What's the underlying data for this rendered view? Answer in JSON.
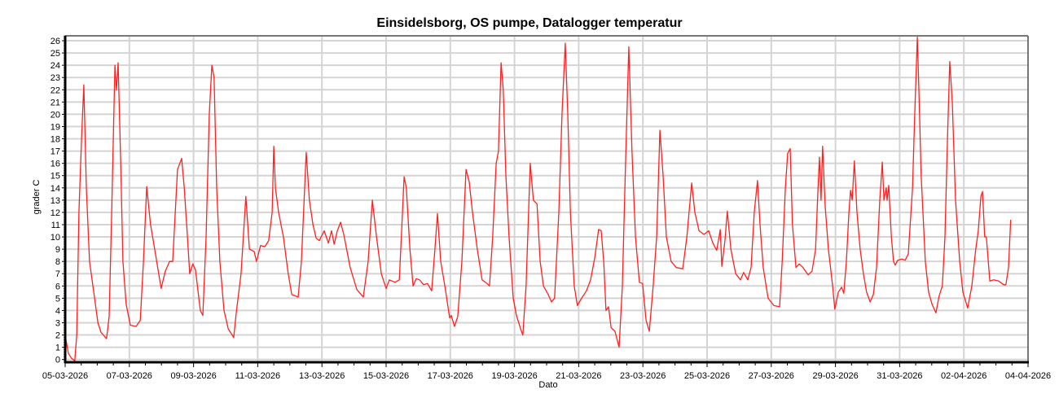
{
  "chart_data": {
    "type": "line",
    "title": "Einsidelsborg, OS pumpe, Datalogger temperatur",
    "xlabel": "Dato",
    "ylabel": "grader C",
    "x_unit": "days since 05-03-2026",
    "xlim": [
      0,
      30
    ],
    "ylim": [
      -0.22,
      26.4
    ],
    "grid": true,
    "yticks": [
      0,
      1,
      2,
      3,
      4,
      5,
      6,
      7,
      8,
      9,
      10,
      11,
      12,
      13,
      14,
      15,
      16,
      17,
      18,
      19,
      20,
      21,
      22,
      23,
      24,
      25,
      26
    ],
    "xticks": [
      {
        "day": 0,
        "label": "05-03-2026"
      },
      {
        "day": 2,
        "label": "07-03-2026"
      },
      {
        "day": 4,
        "label": "09-03-2026"
      },
      {
        "day": 6,
        "label": "11-03-2026"
      },
      {
        "day": 8,
        "label": "13-03-2026"
      },
      {
        "day": 10,
        "label": "15-03-2026"
      },
      {
        "day": 12,
        "label": "17-03-2026"
      },
      {
        "day": 14,
        "label": "19-03-2026"
      },
      {
        "day": 16,
        "label": "21-03-2026"
      },
      {
        "day": 18,
        "label": "23-03-2026"
      },
      {
        "day": 20,
        "label": "25-03-2026"
      },
      {
        "day": 22,
        "label": "27-03-2026"
      },
      {
        "day": 24,
        "label": "29-03-2026"
      },
      {
        "day": 26,
        "label": "31-03-2026"
      },
      {
        "day": 28,
        "label": "02-04-2026"
      },
      {
        "day": 30,
        "label": "04-04-2026"
      }
    ],
    "series": [
      {
        "name": "temperatur",
        "color": "#ff2020",
        "x": [
          0,
          0.1,
          0.2,
          0.3,
          0.36,
          0.43,
          0.51,
          0.58,
          0.66,
          0.76,
          0.89,
          1.02,
          1.12,
          1.29,
          1.37,
          1.45,
          1.55,
          1.6,
          1.65,
          1.73,
          1.8,
          1.9,
          2.03,
          2.21,
          2.34,
          2.44,
          2.54,
          2.66,
          2.79,
          2.99,
          3.12,
          3.25,
          3.35,
          3.5,
          3.63,
          3.71,
          3.81,
          3.88,
          3.98,
          4.06,
          4.21,
          4.29,
          4.39,
          4.49,
          4.57,
          4.64,
          4.72,
          4.82,
          4.95,
          5.08,
          5.25,
          5.33,
          5.48,
          5.63,
          5.74,
          5.89,
          5.96,
          6.09,
          6.22,
          6.34,
          6.45,
          6.5,
          6.55,
          6.65,
          6.8,
          6.95,
          7.06,
          7.26,
          7.36,
          7.51,
          7.61,
          7.72,
          7.82,
          7.92,
          8.07,
          8.2,
          8.3,
          8.38,
          8.48,
          8.58,
          8.68,
          8.88,
          9.09,
          9.29,
          9.44,
          9.57,
          9.7,
          9.85,
          10.0,
          10.1,
          10.28,
          10.41,
          10.56,
          10.63,
          10.74,
          10.84,
          10.94,
          11.04,
          11.17,
          11.29,
          11.42,
          11.52,
          11.6,
          11.7,
          11.83,
          11.98,
          12.03,
          12.13,
          12.23,
          12.36,
          12.49,
          12.59,
          12.69,
          12.84,
          12.99,
          13.1,
          13.22,
          13.32,
          13.43,
          13.5,
          13.58,
          13.65,
          13.73,
          13.83,
          13.96,
          14.06,
          14.19,
          14.26,
          14.36,
          14.49,
          14.59,
          14.7,
          14.8,
          14.9,
          15.05,
          15.15,
          15.25,
          15.38,
          15.48,
          15.58,
          15.66,
          15.74,
          15.86,
          15.96,
          16.09,
          16.24,
          16.37,
          16.5,
          16.62,
          16.7,
          16.78,
          16.85,
          16.93,
          17.01,
          17.13,
          17.26,
          17.36,
          17.46,
          17.56,
          17.66,
          17.77,
          17.89,
          17.99,
          18.1,
          18.2,
          18.32,
          18.43,
          18.53,
          18.63,
          18.73,
          18.88,
          19.04,
          19.24,
          19.37,
          19.52,
          19.62,
          19.75,
          19.9,
          20.05,
          20.18,
          20.3,
          20.41,
          20.46,
          20.56,
          20.63,
          20.74,
          20.89,
          21.04,
          21.14,
          21.27,
          21.37,
          21.47,
          21.57,
          21.65,
          21.75,
          21.9,
          22.08,
          22.26,
          22.34,
          22.44,
          22.51,
          22.59,
          22.66,
          22.77,
          22.87,
          22.99,
          23.15,
          23.27,
          23.38,
          23.45,
          23.5,
          23.55,
          23.6,
          23.68,
          23.78,
          23.91,
          23.98,
          24.09,
          24.19,
          24.26,
          24.34,
          24.42,
          24.47,
          24.52,
          24.59,
          24.67,
          24.77,
          24.87,
          24.97,
          25.08,
          25.18,
          25.28,
          25.38,
          25.46,
          25.51,
          25.58,
          25.61,
          25.66,
          25.74,
          25.81,
          25.86,
          25.94,
          26.07,
          26.17,
          26.27,
          26.4,
          26.47,
          26.55,
          26.6,
          26.67,
          26.8,
          26.9,
          27.01,
          27.13,
          27.23,
          27.33,
          27.41,
          27.49,
          27.56,
          27.64,
          27.74,
          27.87,
          27.97,
          28.12,
          28.25,
          28.37,
          28.45,
          28.53,
          28.58,
          28.65,
          28.7,
          28.81,
          28.93,
          29.09,
          29.24,
          29.31,
          29.39,
          29.46
        ],
        "y": [
          2,
          0.5,
          0.1,
          -0.1,
          2,
          12,
          18,
          22.4,
          14,
          8,
          5.5,
          3,
          2.2,
          1.7,
          3.5,
          12,
          24,
          22,
          24.2,
          16,
          8,
          4.5,
          2.8,
          2.7,
          3.2,
          8,
          14.1,
          11,
          9,
          5.8,
          7.2,
          8,
          8,
          15.5,
          16.4,
          14,
          10,
          7,
          7.8,
          7.3,
          4,
          3.6,
          10,
          20,
          24,
          23,
          14,
          8,
          4,
          2.5,
          1.8,
          3.8,
          7,
          13.3,
          9,
          8.8,
          8,
          9.3,
          9.2,
          9.7,
          12,
          17.4,
          14,
          12,
          10,
          7,
          5.3,
          5.1,
          8,
          16.9,
          13,
          11,
          9.9,
          9.7,
          10.5,
          9.5,
          10.5,
          9.4,
          10.5,
          11.2,
          10.2,
          7.5,
          5.7,
          5.1,
          8,
          13,
          10,
          7,
          5.8,
          6.5,
          6.3,
          6.5,
          14.9,
          14,
          9,
          6,
          6.6,
          6.5,
          6.1,
          6.2,
          5.6,
          9,
          11.9,
          8,
          6,
          3.4,
          3.6,
          2.7,
          3.5,
          8,
          15.5,
          14.5,
          12,
          9,
          6.5,
          6.3,
          6,
          10,
          16,
          17,
          24.2,
          22,
          15,
          10,
          5,
          3.6,
          2.5,
          2,
          6,
          16,
          13,
          12.7,
          8,
          6,
          5.3,
          4.7,
          5,
          12,
          20,
          25.8,
          20,
          12,
          6,
          4.4,
          5,
          5.6,
          6.5,
          8.3,
          10.6,
          10.5,
          8,
          4,
          4.3,
          2.6,
          2.3,
          1,
          6,
          16,
          25.5,
          17,
          10,
          6.3,
          6.2,
          3.2,
          2.3,
          6,
          10,
          18.7,
          15,
          10,
          8,
          7.5,
          7.4,
          10,
          14.4,
          12,
          10.5,
          10.2,
          10.5,
          9.5,
          8.9,
          10.6,
          7.6,
          9.8,
          12.1,
          9,
          7,
          6.5,
          7.1,
          6.5,
          7.5,
          12,
          14.6,
          11,
          7.5,
          5,
          4.4,
          4.3,
          8,
          14,
          16.8,
          17.2,
          11,
          7.5,
          7.8,
          7.5,
          6.9,
          7.2,
          9,
          13.5,
          16.5,
          13,
          17.4,
          12.5,
          9,
          6,
          4.1,
          5.5,
          5.9,
          5.4,
          8,
          12,
          13.8,
          13,
          16.2,
          12,
          9,
          7,
          5.5,
          4.7,
          5.3,
          7.5,
          13,
          16.1,
          13,
          14,
          13,
          14.2,
          10,
          8,
          7.7,
          8.1,
          8.2,
          8.1,
          8.6,
          14,
          20,
          26.3,
          22,
          15,
          8,
          5.5,
          4.5,
          3.8,
          5.2,
          6,
          10,
          18,
          24.3,
          21,
          13,
          8,
          5.5,
          4.2,
          6,
          9,
          10.5,
          13.3,
          13.7,
          10,
          10,
          6.4,
          6.5,
          6.4,
          6.1,
          6.1,
          7.5,
          11.4
        ]
      }
    ]
  }
}
